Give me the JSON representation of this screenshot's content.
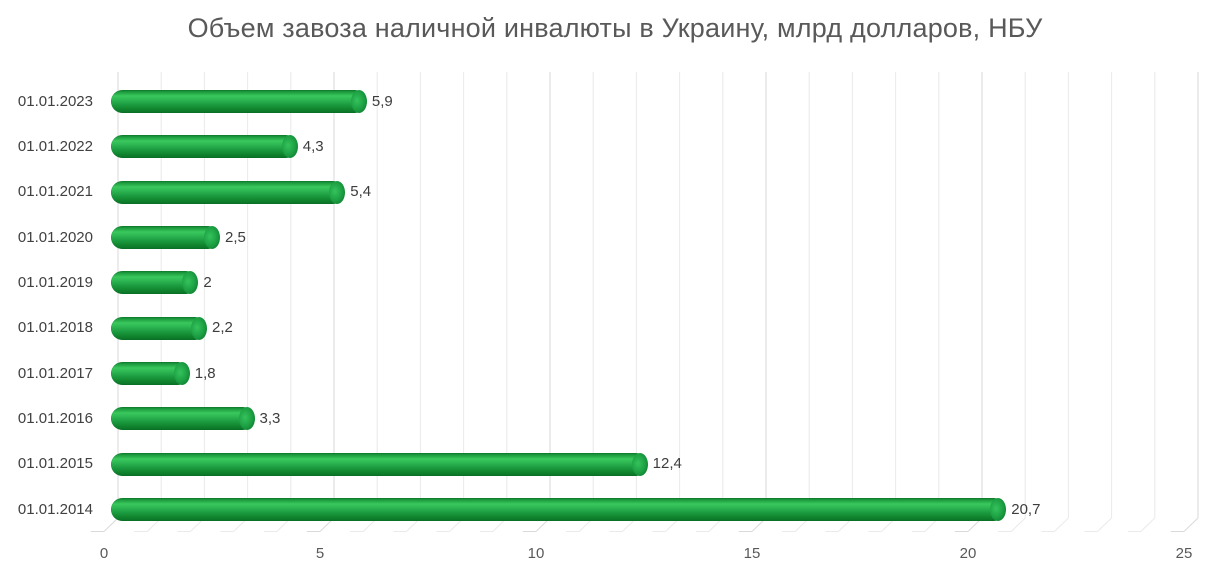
{
  "title": "Объем завоза наличной инвалюты в Украину, млрд долларов, НБУ",
  "chart_data": {
    "type": "bar",
    "orientation": "horizontal",
    "style": "3d-cylinder",
    "title": "Объем завоза наличной инвалюты в Украину, млрд долларов, НБУ",
    "categories": [
      "01.01.2023",
      "01.01.2022",
      "01.01.2021",
      "01.01.2020",
      "01.01.2019",
      "01.01.2018",
      "01.01.2017",
      "01.01.2016",
      "01.01.2015",
      "01.01.2014"
    ],
    "values": [
      5.9,
      4.3,
      5.4,
      2.5,
      2,
      2.2,
      1.8,
      3.3,
      12.4,
      20.7
    ],
    "value_labels": [
      "5,9",
      "4,3",
      "5,4",
      "2,5",
      "2",
      "2,2",
      "1,8",
      "3,3",
      "12,4",
      "20,7"
    ],
    "xlabel": "",
    "ylabel": "",
    "xlim": [
      0,
      25
    ],
    "x_tick_step": 5,
    "x_tick_labels": [
      "0",
      "5",
      "10",
      "15",
      "20",
      "25"
    ],
    "grid": true,
    "grid_step": 1,
    "legend": false,
    "data_labels": true
  },
  "colors": {
    "bar_green": "#1fa846",
    "bar_highlight": "#3ac95e",
    "bar_shadow": "#0a7026",
    "title_gray": "#595959",
    "label_gray": "#404040",
    "grid_minor": "#eaeaea",
    "grid_major": "#d9d9d9",
    "background": "#ffffff"
  }
}
